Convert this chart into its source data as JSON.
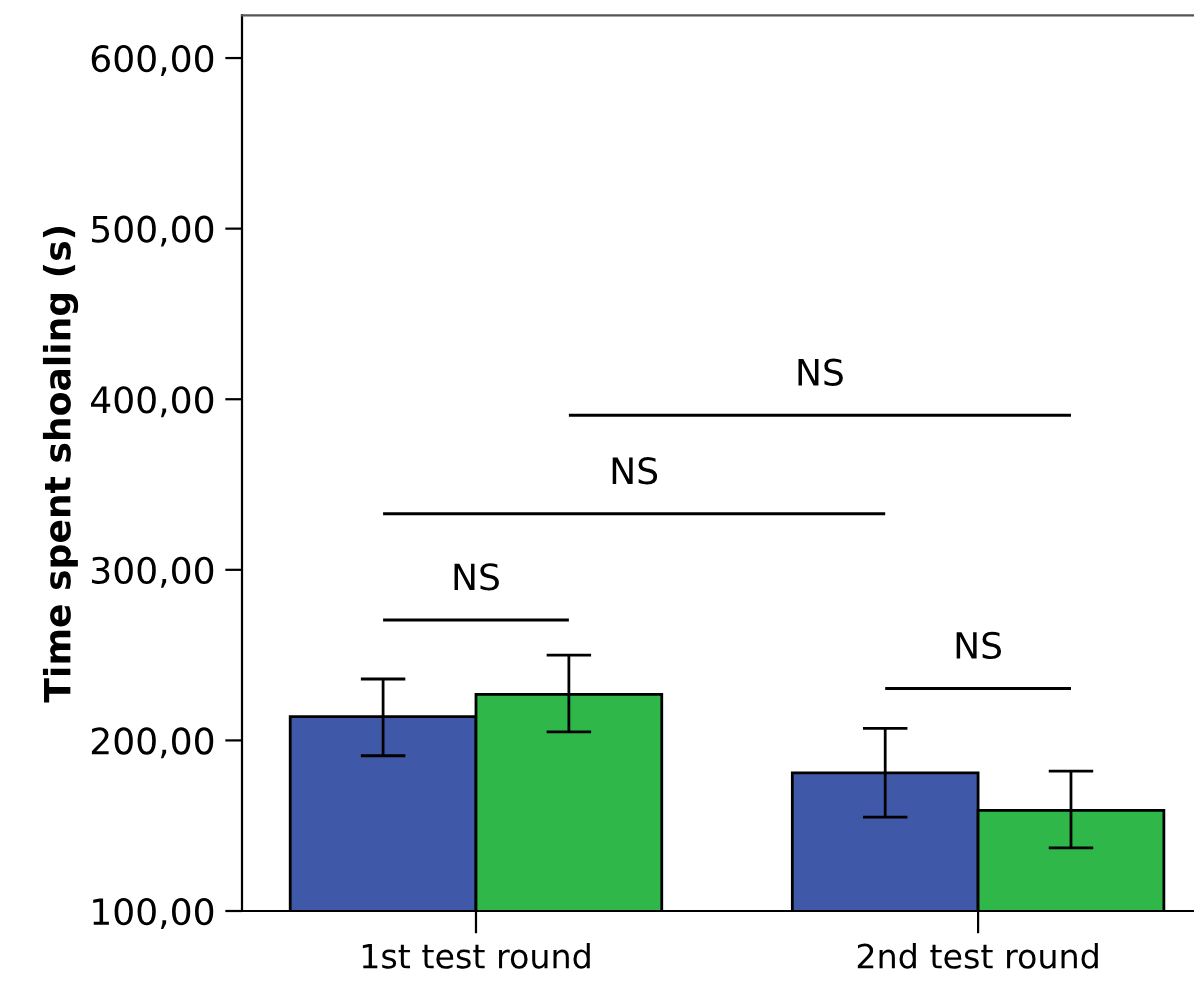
{
  "chart_data": {
    "type": "bar",
    "ylabel": "Time spent shoaling (s)",
    "categories": [
      "1st test round",
      "2nd test round"
    ],
    "series": [
      {
        "color": "#3f58a8",
        "values": [
          214,
          181
        ],
        "errors": [
          [
            191,
            236
          ],
          [
            155,
            207
          ]
        ]
      },
      {
        "color": "#2fb74a",
        "values": [
          227,
          159
        ],
        "errors": [
          [
            205,
            250
          ],
          [
            137,
            182
          ]
        ]
      }
    ],
    "ylim": [
      100,
      625
    ],
    "yticks": [
      {
        "value": 100,
        "label": "100,00"
      },
      {
        "value": 200,
        "label": "200,00"
      },
      {
        "value": 300,
        "label": "300,00"
      },
      {
        "value": 400,
        "label": "400,00"
      },
      {
        "value": 500,
        "label": "500,00"
      },
      {
        "value": 600,
        "label": "600,00"
      }
    ],
    "grid": false,
    "legend": false,
    "annotations": [
      "NS",
      "NS",
      "NS",
      "NS"
    ]
  }
}
